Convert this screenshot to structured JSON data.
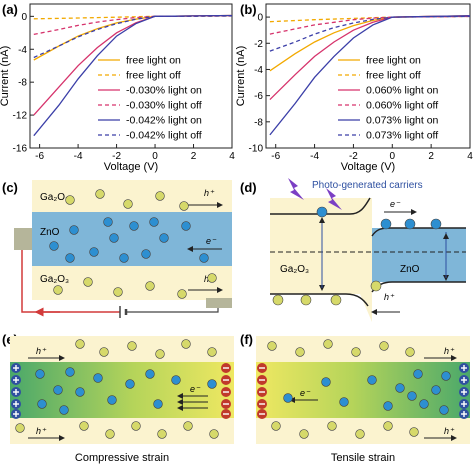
{
  "figure": {
    "colors": {
      "free": "#f2a900",
      "c030": "#d6336c",
      "c042": "#3b3fa8",
      "t060": "#d6336c",
      "t073": "#3b3fa8",
      "black": "#222222",
      "ga_bg": "#fbf3cf",
      "zno": "#7fb6d8",
      "dot_y": "#d6d96a",
      "dot_b": "#2d8fd1",
      "grad_g": "#4aa86a",
      "grad_y": "#e8e866",
      "plus": "#2f4fa0",
      "minus": "#c0392b"
    },
    "panels": {
      "a": "(a)",
      "b": "(b)",
      "c": "(c)",
      "d": "(d)",
      "e": "(e)",
      "f": "(f)"
    }
  },
  "chart_data": [
    {
      "type": "line",
      "panel": "a",
      "xlabel": "Voltage (V)",
      "ylabel": "Current (nA)",
      "xlim": [
        -6.5,
        4
      ],
      "ylim": [
        -16,
        1.5
      ],
      "xticks": [
        -6,
        -4,
        -2,
        0,
        2,
        4
      ],
      "yticks": [
        0,
        -4,
        -8,
        -12,
        -16
      ],
      "series": [
        {
          "name": "free light on",
          "style": "solid",
          "color": "#f2a900",
          "x": [
            -6.3,
            -5,
            -4,
            -3,
            -2,
            -1,
            0,
            1,
            2,
            4
          ],
          "y": [
            -5.3,
            -3.6,
            -2.4,
            -1.5,
            -0.8,
            -0.35,
            0,
            0.02,
            0.05,
            0.1
          ]
        },
        {
          "name": "free light off",
          "style": "dashed",
          "color": "#f2a900",
          "x": [
            -6.3,
            -4,
            -2,
            0,
            2,
            4
          ],
          "y": [
            -0.3,
            -0.2,
            -0.1,
            0,
            0.02,
            0.05
          ]
        },
        {
          "name": "-0.030% light on",
          "style": "solid",
          "color": "#d6336c",
          "x": [
            -6.3,
            -5,
            -4,
            -3,
            -2,
            -1,
            0,
            1,
            2,
            4
          ],
          "y": [
            -12,
            -8.6,
            -6,
            -3.8,
            -2,
            -0.8,
            0,
            0.02,
            0.05,
            0.1
          ]
        },
        {
          "name": "-0.030% light off",
          "style": "dashed",
          "color": "#d6336c",
          "x": [
            -6.3,
            -5,
            -4,
            -3,
            -2,
            -1,
            0,
            2,
            4
          ],
          "y": [
            -2.2,
            -1.6,
            -1.1,
            -0.7,
            -0.4,
            -0.15,
            0,
            0.02,
            0.05
          ]
        },
        {
          "name": "-0.042% light on",
          "style": "solid",
          "color": "#3b3fa8",
          "x": [
            -6.3,
            -5,
            -4,
            -3,
            -2,
            -1,
            0,
            1,
            2,
            4
          ],
          "y": [
            -14.5,
            -10.8,
            -7.6,
            -4.8,
            -2.4,
            -0.9,
            0,
            0.02,
            0.05,
            0.1
          ]
        },
        {
          "name": "-0.042% light off",
          "style": "dashed",
          "color": "#3b3fa8",
          "x": [
            -6.3,
            -5,
            -4,
            -3,
            -2,
            -1,
            0,
            2,
            4
          ],
          "y": [
            -5,
            -3.6,
            -2.5,
            -1.6,
            -0.9,
            -0.35,
            0,
            0.02,
            0.05
          ]
        }
      ]
    },
    {
      "type": "line",
      "panel": "b",
      "xlabel": "Voltage (V)",
      "ylabel": "Current (nA)",
      "xlim": [
        -6.5,
        4
      ],
      "ylim": [
        -10,
        1
      ],
      "xticks": [
        -6,
        -4,
        -2,
        0,
        2,
        4
      ],
      "yticks": [
        0,
        -2,
        -4,
        -6,
        -8,
        -10
      ],
      "series": [
        {
          "name": "free light on",
          "style": "solid",
          "color": "#f2a900",
          "x": [
            -6.3,
            -5,
            -4,
            -3,
            -2,
            -1,
            0,
            1,
            2,
            4
          ],
          "y": [
            -4.1,
            -2.8,
            -1.9,
            -1.2,
            -0.65,
            -0.25,
            0,
            0.02,
            0.05,
            0.1
          ]
        },
        {
          "name": "free light off",
          "style": "dashed",
          "color": "#f2a900",
          "x": [
            -6.3,
            -4,
            -2,
            0,
            2,
            4
          ],
          "y": [
            -0.35,
            -0.2,
            -0.1,
            0,
            0.02,
            0.05
          ]
        },
        {
          "name": "0.060% light on",
          "style": "solid",
          "color": "#d6336c",
          "x": [
            -6.3,
            -5,
            -4,
            -3,
            -2,
            -1,
            0,
            1,
            2,
            4
          ],
          "y": [
            -6.3,
            -4.4,
            -3,
            -1.9,
            -1,
            -0.4,
            0,
            0.02,
            0.05,
            0.1
          ]
        },
        {
          "name": "0.060% light off",
          "style": "dashed",
          "color": "#d6336c",
          "x": [
            -6.3,
            -5,
            -4,
            -3,
            -2,
            -1,
            0,
            2,
            4
          ],
          "y": [
            -1.3,
            -0.9,
            -0.6,
            -0.4,
            -0.2,
            -0.08,
            0,
            0.02,
            0.05
          ]
        },
        {
          "name": "0.073% light on",
          "style": "solid",
          "color": "#3b3fa8",
          "x": [
            -6.3,
            -5,
            -4,
            -3,
            -2,
            -1,
            0,
            1,
            2,
            4
          ],
          "y": [
            -9,
            -6.6,
            -4.6,
            -3,
            -1.6,
            -0.6,
            0,
            0.02,
            0.05,
            0.1
          ]
        },
        {
          "name": "0.073% light off",
          "style": "dashed",
          "color": "#3b3fa8",
          "x": [
            -6.3,
            -5,
            -4,
            -3,
            -2,
            -1,
            0,
            2,
            4
          ],
          "y": [
            -2.6,
            -1.9,
            -1.3,
            -0.8,
            -0.45,
            -0.18,
            0,
            0.02,
            0.05
          ]
        }
      ]
    }
  ],
  "schematics": {
    "c": {
      "ga_top": "Ga₂O₃",
      "zno": "ZnO",
      "ga_bottom": "Ga₂O₃",
      "hplus": "h⁺",
      "eminus": "e⁻"
    },
    "d": {
      "title": "Photo-generated carriers",
      "ga": "Ga₂O₃",
      "zno": "ZnO",
      "eminus": "e⁻",
      "hplus": "h⁺"
    },
    "e": {
      "caption": "Compressive strain",
      "hplus": "h⁺",
      "eminus": "e⁻"
    },
    "f": {
      "caption": "Tensile strain",
      "hplus": "h⁺",
      "eminus": "e⁻"
    }
  }
}
